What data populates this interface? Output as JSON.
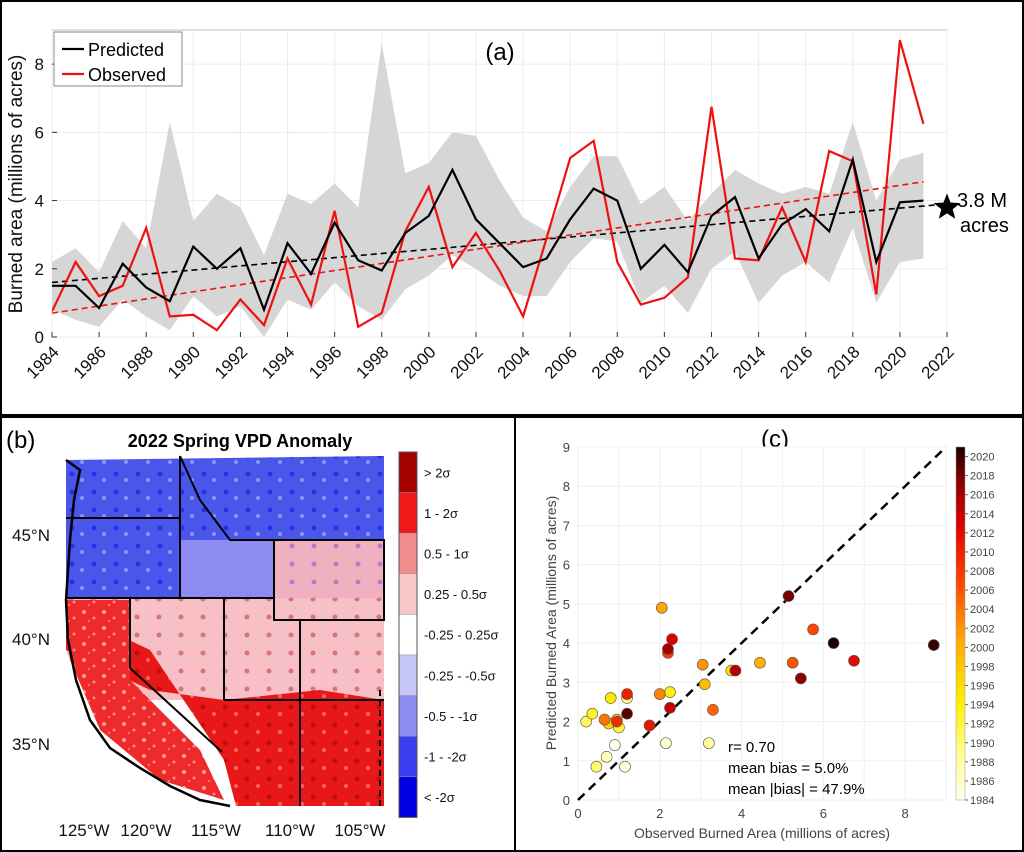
{
  "chart_data": [
    {
      "panel": "(a)",
      "type": "line",
      "title": "(a)",
      "ylabel": "Burned area (millions of acres)",
      "xlim": [
        1984,
        2022
      ],
      "ylim": [
        0,
        9
      ],
      "x_ticks": [
        "1984",
        "1986",
        "1988",
        "1990",
        "1992",
        "1994",
        "1996",
        "1998",
        "2000",
        "2002",
        "2004",
        "2006",
        "2008",
        "2010",
        "2012",
        "2014",
        "2016",
        "2018",
        "2020",
        "2022"
      ],
      "y_ticks": [
        "0",
        "2",
        "4",
        "6",
        "8"
      ],
      "legend": [
        "Predicted",
        "Observed"
      ],
      "legend_position": "top-left",
      "x": [
        1984,
        1985,
        1986,
        1987,
        1988,
        1989,
        1990,
        1991,
        1992,
        1993,
        1994,
        1995,
        1996,
        1997,
        1998,
        1999,
        2000,
        2001,
        2002,
        2003,
        2004,
        2005,
        2006,
        2007,
        2008,
        2009,
        2010,
        2011,
        2012,
        2013,
        2014,
        2015,
        2016,
        2017,
        2018,
        2019,
        2020,
        2021
      ],
      "series": [
        {
          "name": "Predicted",
          "color": "#000000",
          "values": [
            1.5,
            1.5,
            0.85,
            2.15,
            1.45,
            1.05,
            2.65,
            2.0,
            2.6,
            0.8,
            2.75,
            1.85,
            3.35,
            2.25,
            1.95,
            3.05,
            3.55,
            4.9,
            3.45,
            2.75,
            2.05,
            2.3,
            3.45,
            4.35,
            4.0,
            2.0,
            2.7,
            1.9,
            3.55,
            4.1,
            2.3,
            3.3,
            3.75,
            3.1,
            5.2,
            2.2,
            3.95,
            4.0
          ]
        },
        {
          "name": "Observed",
          "color": "#ee1111",
          "values": [
            0.75,
            2.2,
            1.2,
            1.5,
            3.2,
            0.6,
            0.65,
            0.2,
            1.1,
            0.35,
            2.3,
            0.95,
            3.7,
            0.3,
            0.7,
            3.1,
            4.4,
            2.05,
            3.05,
            1.95,
            0.6,
            2.9,
            5.25,
            5.75,
            2.2,
            0.95,
            1.15,
            1.75,
            6.75,
            2.3,
            2.25,
            3.8,
            2.2,
            5.45,
            5.15,
            1.25,
            8.7,
            6.25
          ]
        }
      ],
      "band": {
        "name": "Prediction range",
        "color": "#d6d6d6",
        "upper": [
          2.2,
          2.6,
          1.9,
          3.4,
          2.6,
          6.3,
          3.4,
          4.2,
          3.8,
          2.4,
          4.2,
          3.9,
          4.5,
          3.8,
          8.6,
          4.8,
          5.1,
          6.0,
          5.9,
          4.6,
          3.5,
          3.1,
          4.4,
          5.3,
          5.3,
          3.9,
          4.4,
          3.4,
          4.2,
          4.9,
          4.5,
          4.2,
          4.4,
          4.2,
          6.3,
          4.0,
          5.2,
          5.4
        ],
        "lower": [
          0.8,
          0.5,
          0.3,
          1.1,
          0.6,
          0.2,
          1.2,
          0.6,
          0.9,
          0.0,
          1.1,
          0.8,
          1.6,
          0.9,
          0.5,
          1.4,
          1.8,
          2.4,
          2.0,
          1.5,
          1.2,
          1.2,
          2.2,
          2.9,
          2.8,
          1.0,
          1.5,
          0.7,
          2.0,
          2.5,
          1.0,
          1.8,
          2.2,
          1.6,
          3.2,
          1.0,
          2.2,
          2.3
        ]
      },
      "trendlines": [
        {
          "name": "Predicted trend",
          "color": "#000000",
          "x": [
            1984,
            2022
          ],
          "y": [
            1.6,
            3.9
          ]
        },
        {
          "name": "Observed trend",
          "color": "#ee1111",
          "x": [
            1984,
            2021
          ],
          "y": [
            0.7,
            4.55
          ]
        }
      ],
      "marker": {
        "x": 2022,
        "y": 3.8,
        "symbol": "star",
        "label_line1": "3.8 M",
        "label_line2": "acres"
      }
    },
    {
      "panel": "(b)",
      "type": "heatmap",
      "title": "2022 Spring VPD Anomaly",
      "x_ticks": [
        "125°W",
        "120°W",
        "115°W",
        "110°W",
        "105°W"
      ],
      "y_ticks": [
        "45°N",
        "40°N",
        "35°N"
      ],
      "colorbar": [
        {
          "label": "> 2σ",
          "color": "#a50000"
        },
        {
          "label": "1 - 2σ",
          "color": "#f01818"
        },
        {
          "label": "0.5 - 1σ",
          "color": "#f08c8c"
        },
        {
          "label": "0.25 - 0.5σ",
          "color": "#f8c8c8"
        },
        {
          "label": "-0.25 - 0.25σ",
          "color": "#ffffff"
        },
        {
          "label": "-0.25 - -0.5σ",
          "color": "#c8c8f8"
        },
        {
          "label": "-0.5 - -1σ",
          "color": "#8c8cf0"
        },
        {
          "label": "-1 - -2σ",
          "color": "#3c3cf0"
        },
        {
          "label": "< -2σ",
          "color": "#0000e0"
        }
      ]
    },
    {
      "panel": "(c)",
      "type": "scatter",
      "title": "(c)",
      "xlabel": "Observed Burned Area (millions of acres)",
      "ylabel": "Predicted Burned Area (millions of acres)",
      "xlim": [
        0,
        9
      ],
      "ylim": [
        0,
        9
      ],
      "x_ticks": [
        "0",
        "2",
        "4",
        "6",
        "8"
      ],
      "y_ticks": [
        "0",
        "1",
        "2",
        "3",
        "4",
        "5",
        "6",
        "7",
        "8",
        "9"
      ],
      "colorbar_ticks": [
        "2020",
        "2018",
        "2016",
        "2014",
        "2012",
        "2010",
        "2008",
        "2006",
        "2004",
        "2002",
        "2000",
        "1998",
        "1996",
        "1994",
        "1992",
        "1990",
        "1988",
        "1986",
        "1984"
      ],
      "year_range": [
        1984,
        2021
      ],
      "annotations": [
        "r= 0.70",
        "mean bias = 5.0%",
        "mean |bias| = 47.9%"
      ],
      "points": [
        {
          "year": 1984,
          "x": 0.9,
          "y": 1.4
        },
        {
          "year": 1985,
          "x": 1.15,
          "y": 0.85
        },
        {
          "year": 1986,
          "x": 2.15,
          "y": 1.45
        },
        {
          "year": 1987,
          "x": 0.7,
          "y": 1.1
        },
        {
          "year": 1988,
          "x": 3.2,
          "y": 1.45
        },
        {
          "year": 1989,
          "x": 1.2,
          "y": 2.6
        },
        {
          "year": 1990,
          "x": 0.45,
          "y": 0.85
        },
        {
          "year": 1991,
          "x": 0.2,
          "y": 2.0
        },
        {
          "year": 1992,
          "x": 1.0,
          "y": 1.85
        },
        {
          "year": 1993,
          "x": 0.35,
          "y": 2.2
        },
        {
          "year": 1994,
          "x": 2.25,
          "y": 2.75
        },
        {
          "year": 1995,
          "x": 0.8,
          "y": 2.6
        },
        {
          "year": 1996,
          "x": 3.75,
          "y": 3.3
        },
        {
          "year": 1997,
          "x": 0.75,
          "y": 1.95
        },
        {
          "year": 1998,
          "x": 0.95,
          "y": 2.05
        },
        {
          "year": 1999,
          "x": 3.1,
          "y": 2.95
        },
        {
          "year": 2000,
          "x": 4.45,
          "y": 3.5
        },
        {
          "year": 2001,
          "x": 2.05,
          "y": 4.9
        },
        {
          "year": 2002,
          "x": 3.05,
          "y": 3.45
        },
        {
          "year": 2003,
          "x": 2.0,
          "y": 2.7
        },
        {
          "year": 2004,
          "x": 0.65,
          "y": 2.05
        },
        {
          "year": 2005,
          "x": 3.3,
          "y": 2.3
        },
        {
          "year": 2006,
          "x": 5.25,
          "y": 3.5
        },
        {
          "year": 2007,
          "x": 5.75,
          "y": 4.35
        },
        {
          "year": 2008,
          "x": 2.2,
          "y": 3.75
        },
        {
          "year": 2009,
          "x": 0.95,
          "y": 2.0
        },
        {
          "year": 2010,
          "x": 1.2,
          "y": 2.7
        },
        {
          "year": 2011,
          "x": 1.75,
          "y": 1.9
        },
        {
          "year": 2012,
          "x": 6.75,
          "y": 3.55
        },
        {
          "year": 2013,
          "x": 2.3,
          "y": 4.1
        },
        {
          "year": 2014,
          "x": 2.25,
          "y": 2.35
        },
        {
          "year": 2015,
          "x": 3.85,
          "y": 3.3
        },
        {
          "year": 2016,
          "x": 2.2,
          "y": 3.85
        },
        {
          "year": 2017,
          "x": 5.45,
          "y": 3.1
        },
        {
          "year": 2018,
          "x": 5.15,
          "y": 5.2
        },
        {
          "year": 2019,
          "x": 1.2,
          "y": 2.2
        },
        {
          "year": 2020,
          "x": 8.7,
          "y": 3.95
        },
        {
          "year": 2021,
          "x": 6.25,
          "y": 4.0
        }
      ]
    }
  ]
}
